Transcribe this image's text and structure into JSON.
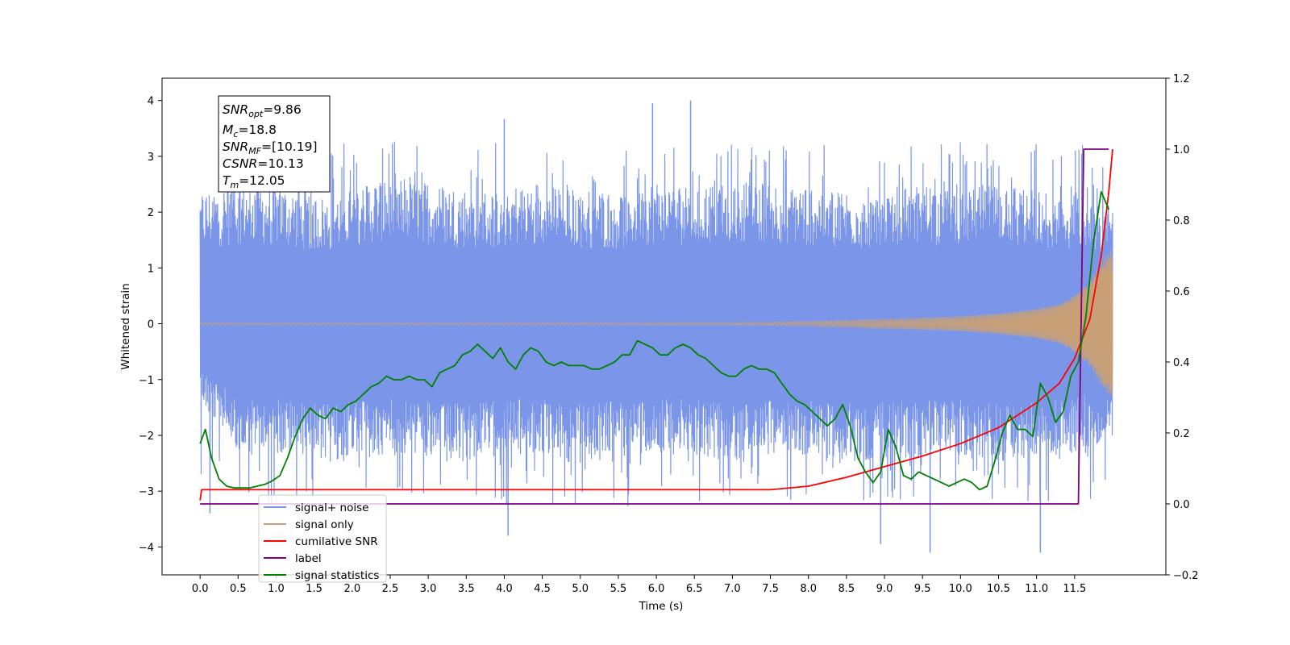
{
  "chart_data": {
    "type": "line",
    "title": "",
    "xlabel": "Time (s)",
    "ylabel": "Whitened strain",
    "y2label": "",
    "xlim": [
      -0.5,
      12.7
    ],
    "ylim": [
      -4.5,
      4.4
    ],
    "y2lim": [
      -0.2,
      1.2
    ],
    "x_ticks": [
      0.0,
      0.5,
      1.0,
      1.5,
      2.0,
      2.5,
      3.0,
      3.5,
      4.0,
      4.5,
      5.0,
      5.5,
      6.0,
      6.5,
      7.0,
      7.5,
      8.0,
      8.5,
      9.0,
      9.5,
      10.0,
      10.5,
      11.0,
      11.5
    ],
    "x_tick_labels": [
      "0.0",
      "0.5",
      "1.0",
      "1.5",
      "2.0",
      "2.5",
      "3.0",
      "3.5",
      "4.0",
      "4.5",
      "5.0",
      "5.5",
      "6.0",
      "6.5",
      "7.0",
      "7.5",
      "8.0",
      "8.5",
      "9.0",
      "9.5",
      "10.0",
      "10.5",
      "11.0",
      "11.5"
    ],
    "y_ticks": [
      -4,
      -3,
      -2,
      -1,
      0,
      1,
      2,
      3,
      4
    ],
    "y_tick_labels": [
      "−4",
      "−3",
      "−2",
      "−1",
      "0",
      "1",
      "2",
      "3",
      "4"
    ],
    "y2_ticks": [
      -0.2,
      0.0,
      0.2,
      0.4,
      0.6,
      0.8,
      1.0,
      1.2
    ],
    "y2_tick_labels": [
      "−0.2",
      "0.0",
      "0.2",
      "0.4",
      "0.6",
      "0.8",
      "1.0",
      "1.2"
    ],
    "grid": false,
    "legend_position": "lower-left",
    "annotation": {
      "snr_opt": {
        "symbol": "SNR",
        "sub": "opt",
        "value": "=9.86"
      },
      "mc": {
        "symbol": "M",
        "sub": "c",
        "value": "=18.8"
      },
      "snr_mf": {
        "symbol": "SNR",
        "sub": "MF",
        "value": "=[10.19]"
      },
      "csnr": {
        "symbol": "CSNR",
        "sub": "",
        "value": "=10.13"
      },
      "tm": {
        "symbol": "T",
        "sub": "m",
        "value": "=12.05"
      }
    },
    "series": [
      {
        "name": "signal+ noise",
        "axis": "left",
        "color": "#7b96e8",
        "style": "noise-band",
        "t_range": [
          0.0,
          12.0
        ],
        "upper_envelope": [
          2.4,
          2.6,
          2.5,
          2.3,
          2.6,
          2.7,
          2.5,
          2.4,
          2.6,
          2.5,
          2.4,
          2.6,
          2.5,
          2.7,
          2.6,
          2.5,
          2.4,
          2.6,
          2.5,
          2.6,
          2.5,
          2.4,
          2.2
        ],
        "lower_envelope": [
          -1.4,
          -2.5,
          -2.4,
          -2.6,
          -2.5,
          -2.4,
          -2.6,
          -2.5,
          -2.4,
          -2.6,
          -2.5,
          -2.4,
          -2.5,
          -2.6,
          -2.4,
          -2.5,
          -2.6,
          -2.5,
          -2.4,
          -2.6,
          -2.5,
          -2.4,
          -2.2
        ],
        "typical_range": [
          -3.3,
          3.3
        ],
        "extreme_peaks": [
          [
            4.0,
            3.67
          ],
          [
            5.95,
            3.95
          ],
          [
            6.45,
            4.0
          ],
          [
            0.13,
            -3.4
          ],
          [
            4.05,
            -3.8
          ],
          [
            8.95,
            -3.95
          ],
          [
            9.6,
            -4.1
          ],
          [
            11.05,
            -4.1
          ]
        ]
      },
      {
        "name": "signal only",
        "axis": "left",
        "color": "#c8a078",
        "t": [
          0.0,
          7.0,
          8.0,
          9.0,
          10.0,
          10.5,
          11.0,
          11.3,
          11.5,
          11.7,
          11.85,
          12.0
        ],
        "amplitude": [
          0.02,
          0.02,
          0.04,
          0.08,
          0.13,
          0.18,
          0.26,
          0.35,
          0.5,
          0.75,
          1.1,
          1.35
        ]
      },
      {
        "name": "cumilative SNR",
        "axis": "right",
        "color": "#ff0000",
        "x": [
          0.0,
          0.02,
          7.5,
          8.0,
          8.5,
          9.0,
          9.5,
          10.0,
          10.5,
          11.0,
          11.3,
          11.5,
          11.7,
          11.85,
          11.95,
          12.0
        ],
        "y": [
          0.01,
          0.04,
          0.04,
          0.05,
          0.075,
          0.105,
          0.135,
          0.17,
          0.215,
          0.285,
          0.34,
          0.41,
          0.52,
          0.7,
          0.88,
          1.0
        ]
      },
      {
        "name": "label",
        "axis": "right",
        "color": "#800080",
        "x": [
          0.0,
          11.55,
          11.55,
          11.62,
          11.95
        ],
        "y": [
          0.0,
          0.0,
          0.0,
          1.0,
          1.0
        ]
      },
      {
        "name": "signal statistics",
        "axis": "right",
        "color": "#008000",
        "x": [
          0.0,
          0.07,
          0.15,
          0.25,
          0.35,
          0.45,
          0.55,
          0.65,
          0.75,
          0.85,
          0.95,
          1.05,
          1.15,
          1.25,
          1.35,
          1.45,
          1.55,
          1.65,
          1.75,
          1.85,
          1.95,
          2.05,
          2.15,
          2.25,
          2.35,
          2.45,
          2.55,
          2.65,
          2.75,
          2.85,
          2.95,
          3.05,
          3.15,
          3.25,
          3.35,
          3.45,
          3.55,
          3.65,
          3.75,
          3.85,
          3.95,
          4.05,
          4.15,
          4.25,
          4.35,
          4.45,
          4.55,
          4.65,
          4.75,
          4.85,
          4.95,
          5.05,
          5.15,
          5.25,
          5.35,
          5.45,
          5.55,
          5.65,
          5.75,
          5.85,
          5.95,
          6.05,
          6.15,
          6.25,
          6.35,
          6.45,
          6.55,
          6.65,
          6.75,
          6.85,
          6.95,
          7.05,
          7.15,
          7.25,
          7.35,
          7.45,
          7.55,
          7.65,
          7.75,
          7.85,
          7.95,
          8.05,
          8.15,
          8.25,
          8.35,
          8.45,
          8.55,
          8.65,
          8.75,
          8.85,
          8.95,
          9.05,
          9.15,
          9.25,
          9.35,
          9.45,
          9.55,
          9.65,
          9.75,
          9.85,
          9.95,
          10.05,
          10.15,
          10.25,
          10.35,
          10.45,
          10.55,
          10.65,
          10.75,
          10.85,
          10.95,
          11.05,
          11.15,
          11.25,
          11.35,
          11.45,
          11.55,
          11.65,
          11.75,
          11.85,
          11.95
        ],
        "y": [
          0.17,
          0.21,
          0.13,
          0.07,
          0.05,
          0.045,
          0.045,
          0.045,
          0.05,
          0.055,
          0.065,
          0.08,
          0.13,
          0.19,
          0.24,
          0.27,
          0.25,
          0.24,
          0.27,
          0.26,
          0.28,
          0.29,
          0.31,
          0.33,
          0.34,
          0.36,
          0.35,
          0.35,
          0.36,
          0.35,
          0.35,
          0.33,
          0.37,
          0.38,
          0.39,
          0.42,
          0.43,
          0.45,
          0.43,
          0.41,
          0.44,
          0.4,
          0.38,
          0.42,
          0.44,
          0.43,
          0.4,
          0.39,
          0.4,
          0.39,
          0.39,
          0.39,
          0.38,
          0.38,
          0.39,
          0.4,
          0.42,
          0.42,
          0.46,
          0.45,
          0.44,
          0.42,
          0.42,
          0.44,
          0.45,
          0.44,
          0.42,
          0.41,
          0.39,
          0.37,
          0.36,
          0.36,
          0.38,
          0.39,
          0.38,
          0.38,
          0.37,
          0.34,
          0.31,
          0.29,
          0.28,
          0.26,
          0.24,
          0.22,
          0.24,
          0.28,
          0.22,
          0.13,
          0.09,
          0.06,
          0.09,
          0.21,
          0.16,
          0.08,
          0.07,
          0.09,
          0.08,
          0.07,
          0.06,
          0.05,
          0.06,
          0.07,
          0.06,
          0.04,
          0.05,
          0.12,
          0.2,
          0.25,
          0.21,
          0.21,
          0.19,
          0.34,
          0.3,
          0.23,
          0.26,
          0.36,
          0.4,
          0.53,
          0.74,
          0.88,
          0.83
        ]
      }
    ]
  }
}
